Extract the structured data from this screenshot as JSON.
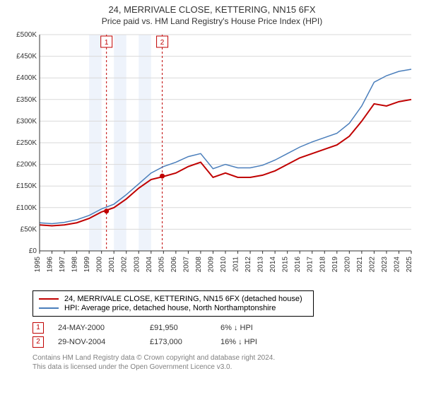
{
  "title": "24, MERRIVALE CLOSE, KETTERING, NN15 6FX",
  "subtitle": "Price paid vs. HM Land Registry's House Price Index (HPI)",
  "chart": {
    "type": "line",
    "background_color": "#ffffff",
    "plot_background": "#ffffff",
    "x_years": [
      1995,
      1996,
      1997,
      1998,
      1999,
      2000,
      2001,
      2002,
      2003,
      2004,
      2005,
      2006,
      2007,
      2008,
      2009,
      2010,
      2011,
      2012,
      2013,
      2014,
      2015,
      2016,
      2017,
      2018,
      2019,
      2020,
      2021,
      2022,
      2023,
      2024,
      2025
    ],
    "ylim": [
      0,
      500000
    ],
    "ytick_step": 50000,
    "ytick_labels": [
      "£0",
      "£50K",
      "£100K",
      "£150K",
      "£200K",
      "£250K",
      "£300K",
      "£350K",
      "£400K",
      "£450K",
      "£500K"
    ],
    "grid_color": "#d9d9d9",
    "altband_color": "#eef3fb",
    "altband_years": [
      [
        1999,
        2000
      ],
      [
        2001,
        2002
      ],
      [
        2003,
        2004
      ]
    ],
    "series": [
      {
        "name": "property",
        "label": "24, MERRIVALE CLOSE, KETTERING, NN15 6FX (detached house)",
        "color": "#c00000",
        "line_width": 2,
        "values": [
          60000,
          58000,
          60000,
          65000,
          75000,
          90000,
          100000,
          120000,
          145000,
          165000,
          172000,
          180000,
          195000,
          205000,
          170000,
          180000,
          170000,
          170000,
          175000,
          185000,
          200000,
          215000,
          225000,
          235000,
          245000,
          265000,
          300000,
          340000,
          335000,
          345000,
          350000
        ]
      },
      {
        "name": "hpi",
        "label": "HPI: Average price, detached house, North Northamptonshire",
        "color": "#4a7ebb",
        "line_width": 1.5,
        "values": [
          65000,
          63000,
          66000,
          72000,
          82000,
          97000,
          108000,
          130000,
          155000,
          180000,
          195000,
          205000,
          218000,
          225000,
          190000,
          200000,
          192000,
          192000,
          198000,
          210000,
          225000,
          240000,
          252000,
          262000,
          272000,
          295000,
          335000,
          390000,
          405000,
          415000,
          420000
        ]
      }
    ],
    "sale_markers": [
      {
        "id": "1",
        "year": 2000.4,
        "price": 91950,
        "date": "24-MAY-2000",
        "diff": "6% ↓ HPI"
      },
      {
        "id": "2",
        "year": 2004.9,
        "price": 173000,
        "date": "29-NOV-2004",
        "diff": "16% ↓ HPI"
      }
    ],
    "sale_line_color": "#c00000",
    "sale_dot_color": "#c00000",
    "label_fontsize": 10
  },
  "legend": {
    "rows": [
      {
        "color": "#c00000",
        "label": "24, MERRIVALE CLOSE, KETTERING, NN15 6FX (detached house)"
      },
      {
        "color": "#4a7ebb",
        "label": "HPI: Average price, detached house, North Northamptonshire"
      }
    ]
  },
  "footer": {
    "line1": "Contains HM Land Registry data © Crown copyright and database right 2024.",
    "line2": "This data is licensed under the Open Government Licence v3.0."
  }
}
